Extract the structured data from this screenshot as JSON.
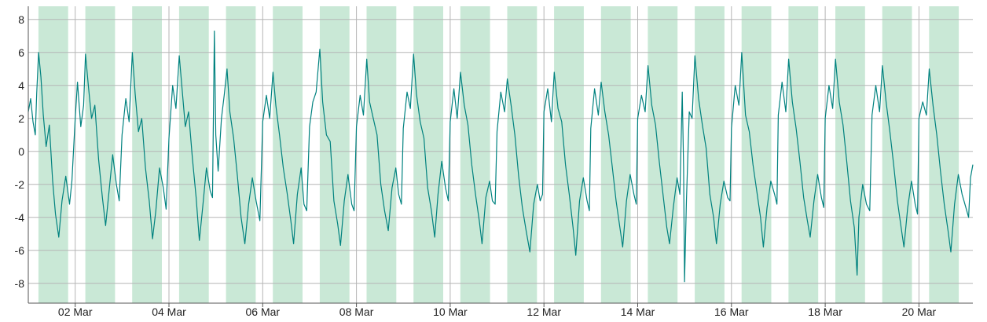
{
  "chart_data": {
    "type": "line",
    "title": "",
    "xlabel": "",
    "ylabel": "",
    "ylim": [
      -9.2,
      8.8
    ],
    "y_ticks": [
      "8",
      "6",
      "4",
      "2",
      "0",
      "-2",
      "-4",
      "-6",
      "-8"
    ],
    "y_tick_values": [
      8,
      6,
      4,
      2,
      0,
      -2,
      -4,
      -6,
      -8
    ],
    "x_unit": "days since 01 Mar",
    "xlim": [
      0.0,
      20.15
    ],
    "x_ticks": [
      "02 Mar",
      "04 Mar",
      "06 Mar",
      "08 Mar",
      "10 Mar",
      "12 Mar",
      "14 Mar",
      "16 Mar",
      "18 Mar",
      "20 Mar"
    ],
    "x_tick_values": [
      1,
      3,
      5,
      7,
      9,
      11,
      13,
      15,
      17,
      19
    ],
    "grid": true,
    "legend": "none",
    "shaded_bands": [
      [
        0.217,
        0.85
      ],
      [
        1.217,
        1.85
      ],
      [
        2.217,
        2.85
      ],
      [
        3.217,
        3.85
      ],
      [
        4.217,
        4.85
      ],
      [
        5.217,
        5.85
      ],
      [
        6.217,
        6.85
      ],
      [
        7.217,
        7.85
      ],
      [
        8.217,
        8.85
      ],
      [
        9.217,
        9.85
      ],
      [
        10.217,
        10.85
      ],
      [
        11.217,
        11.85
      ],
      [
        12.217,
        12.85
      ],
      [
        13.217,
        13.85
      ],
      [
        14.217,
        14.85
      ],
      [
        15.217,
        15.85
      ],
      [
        16.217,
        16.85
      ],
      [
        17.217,
        17.85
      ],
      [
        18.217,
        18.85
      ],
      [
        19.217,
        19.85
      ]
    ],
    "series": [
      {
        "color": "#00827f",
        "points": [
          [
            0.0,
            2.4
          ],
          [
            0.05,
            3.2
          ],
          [
            0.1,
            1.8
          ],
          [
            0.15,
            1.0
          ],
          [
            0.18,
            3.5
          ],
          [
            0.22,
            6.0
          ],
          [
            0.27,
            4.5
          ],
          [
            0.32,
            2.2
          ],
          [
            0.38,
            0.3
          ],
          [
            0.45,
            1.6
          ],
          [
            0.52,
            -1.8
          ],
          [
            0.58,
            -3.8
          ],
          [
            0.65,
            -5.2
          ],
          [
            0.72,
            -3.0
          ],
          [
            0.8,
            -1.5
          ],
          [
            0.88,
            -3.2
          ],
          [
            0.93,
            -1.8
          ],
          [
            1.0,
            2.0
          ],
          [
            1.05,
            4.2
          ],
          [
            1.12,
            1.5
          ],
          [
            1.18,
            2.8
          ],
          [
            1.22,
            5.9
          ],
          [
            1.28,
            4.0
          ],
          [
            1.35,
            2.0
          ],
          [
            1.42,
            2.8
          ],
          [
            1.5,
            -0.5
          ],
          [
            1.58,
            -2.8
          ],
          [
            1.65,
            -4.5
          ],
          [
            1.72,
            -2.5
          ],
          [
            1.8,
            -0.2
          ],
          [
            1.88,
            -2.0
          ],
          [
            1.94,
            -3.0
          ],
          [
            2.0,
            1.0
          ],
          [
            2.08,
            3.2
          ],
          [
            2.15,
            1.8
          ],
          [
            2.22,
            6.0
          ],
          [
            2.28,
            3.5
          ],
          [
            2.35,
            1.2
          ],
          [
            2.42,
            2.0
          ],
          [
            2.5,
            -1.0
          ],
          [
            2.58,
            -3.0
          ],
          [
            2.65,
            -5.3
          ],
          [
            2.72,
            -3.6
          ],
          [
            2.8,
            -1.0
          ],
          [
            2.88,
            -2.2
          ],
          [
            2.94,
            -3.5
          ],
          [
            3.0,
            0.8
          ],
          [
            3.08,
            4.0
          ],
          [
            3.15,
            2.6
          ],
          [
            3.22,
            5.8
          ],
          [
            3.28,
            3.8
          ],
          [
            3.35,
            1.5
          ],
          [
            3.42,
            2.4
          ],
          [
            3.5,
            -0.4
          ],
          [
            3.58,
            -2.8
          ],
          [
            3.65,
            -5.4
          ],
          [
            3.72,
            -3.4
          ],
          [
            3.8,
            -1.0
          ],
          [
            3.88,
            -2.4
          ],
          [
            3.93,
            -2.8
          ],
          [
            3.97,
            7.3
          ],
          [
            4.0,
            1.0
          ],
          [
            4.05,
            -1.2
          ],
          [
            4.12,
            2.0
          ],
          [
            4.18,
            3.4
          ],
          [
            4.24,
            5.0
          ],
          [
            4.3,
            2.4
          ],
          [
            4.38,
            0.8
          ],
          [
            4.46,
            -1.5
          ],
          [
            4.54,
            -4.0
          ],
          [
            4.62,
            -5.6
          ],
          [
            4.7,
            -3.2
          ],
          [
            4.78,
            -1.6
          ],
          [
            4.86,
            -3.0
          ],
          [
            4.94,
            -4.2
          ],
          [
            5.0,
            1.8
          ],
          [
            5.08,
            3.4
          ],
          [
            5.15,
            2.0
          ],
          [
            5.22,
            4.8
          ],
          [
            5.28,
            2.8
          ],
          [
            5.36,
            1.0
          ],
          [
            5.44,
            -1.0
          ],
          [
            5.52,
            -2.5
          ],
          [
            5.6,
            -4.2
          ],
          [
            5.66,
            -5.6
          ],
          [
            5.74,
            -2.6
          ],
          [
            5.82,
            -1.0
          ],
          [
            5.88,
            -3.2
          ],
          [
            5.94,
            -3.6
          ],
          [
            6.0,
            1.5
          ],
          [
            6.07,
            3.0
          ],
          [
            6.14,
            3.6
          ],
          [
            6.22,
            6.2
          ],
          [
            6.28,
            3.0
          ],
          [
            6.36,
            1.0
          ],
          [
            6.44,
            0.6
          ],
          [
            6.52,
            -3.0
          ],
          [
            6.6,
            -4.4
          ],
          [
            6.66,
            -5.7
          ],
          [
            6.74,
            -3.0
          ],
          [
            6.82,
            -1.4
          ],
          [
            6.9,
            -3.2
          ],
          [
            6.95,
            -3.6
          ],
          [
            7.0,
            1.5
          ],
          [
            7.08,
            3.4
          ],
          [
            7.15,
            2.2
          ],
          [
            7.22,
            5.6
          ],
          [
            7.28,
            3.0
          ],
          [
            7.36,
            2.0
          ],
          [
            7.44,
            1.0
          ],
          [
            7.52,
            -2.0
          ],
          [
            7.6,
            -3.6
          ],
          [
            7.68,
            -4.8
          ],
          [
            7.76,
            -2.2
          ],
          [
            7.84,
            -1.0
          ],
          [
            7.9,
            -2.6
          ],
          [
            7.96,
            -3.2
          ],
          [
            8.0,
            1.4
          ],
          [
            8.08,
            3.6
          ],
          [
            8.15,
            2.6
          ],
          [
            8.22,
            5.9
          ],
          [
            8.28,
            3.5
          ],
          [
            8.36,
            1.8
          ],
          [
            8.44,
            0.8
          ],
          [
            8.52,
            -2.2
          ],
          [
            8.6,
            -3.6
          ],
          [
            8.67,
            -5.2
          ],
          [
            8.74,
            -2.6
          ],
          [
            8.82,
            -0.6
          ],
          [
            8.9,
            -2.2
          ],
          [
            8.96,
            -3.0
          ],
          [
            9.0,
            1.8
          ],
          [
            9.08,
            3.8
          ],
          [
            9.15,
            2.0
          ],
          [
            9.22,
            4.8
          ],
          [
            9.3,
            2.8
          ],
          [
            9.38,
            1.6
          ],
          [
            9.46,
            -0.8
          ],
          [
            9.54,
            -2.6
          ],
          [
            9.62,
            -4.2
          ],
          [
            9.68,
            -5.6
          ],
          [
            9.76,
            -2.8
          ],
          [
            9.84,
            -1.8
          ],
          [
            9.9,
            -3.0
          ],
          [
            9.96,
            -3.2
          ],
          [
            10.0,
            1.2
          ],
          [
            10.08,
            3.6
          ],
          [
            10.16,
            2.4
          ],
          [
            10.22,
            4.4
          ],
          [
            10.3,
            2.8
          ],
          [
            10.38,
            1.0
          ],
          [
            10.46,
            -1.5
          ],
          [
            10.54,
            -3.4
          ],
          [
            10.62,
            -4.8
          ],
          [
            10.7,
            -6.1
          ],
          [
            10.78,
            -3.2
          ],
          [
            10.86,
            -2.0
          ],
          [
            10.92,
            -3.0
          ],
          [
            10.97,
            -2.6
          ],
          [
            11.0,
            2.4
          ],
          [
            11.08,
            3.8
          ],
          [
            11.16,
            1.8
          ],
          [
            11.22,
            4.8
          ],
          [
            11.3,
            2.6
          ],
          [
            11.38,
            1.8
          ],
          [
            11.46,
            -0.8
          ],
          [
            11.54,
            -2.6
          ],
          [
            11.62,
            -4.6
          ],
          [
            11.68,
            -6.3
          ],
          [
            11.76,
            -3.0
          ],
          [
            11.84,
            -1.6
          ],
          [
            11.92,
            -3.0
          ],
          [
            11.97,
            -3.6
          ],
          [
            12.0,
            1.4
          ],
          [
            12.08,
            3.8
          ],
          [
            12.16,
            2.2
          ],
          [
            12.22,
            4.2
          ],
          [
            12.3,
            2.4
          ],
          [
            12.38,
            1.0
          ],
          [
            12.46,
            -1.0
          ],
          [
            12.54,
            -3.0
          ],
          [
            12.62,
            -4.6
          ],
          [
            12.68,
            -5.8
          ],
          [
            12.76,
            -3.0
          ],
          [
            12.84,
            -1.4
          ],
          [
            12.92,
            -2.6
          ],
          [
            12.97,
            -3.2
          ],
          [
            13.0,
            2.0
          ],
          [
            13.08,
            3.4
          ],
          [
            13.16,
            2.4
          ],
          [
            13.22,
            5.2
          ],
          [
            13.3,
            2.8
          ],
          [
            13.38,
            1.6
          ],
          [
            13.46,
            -0.6
          ],
          [
            13.54,
            -2.6
          ],
          [
            13.62,
            -4.6
          ],
          [
            13.68,
            -5.6
          ],
          [
            13.76,
            -3.4
          ],
          [
            13.84,
            -1.6
          ],
          [
            13.9,
            -2.6
          ],
          [
            13.95,
            3.6
          ],
          [
            13.98,
            -1.0
          ],
          [
            14.0,
            -7.9
          ],
          [
            14.04,
            -3.0
          ],
          [
            14.1,
            2.4
          ],
          [
            14.16,
            2.0
          ],
          [
            14.22,
            5.8
          ],
          [
            14.3,
            3.2
          ],
          [
            14.38,
            1.6
          ],
          [
            14.46,
            0.2
          ],
          [
            14.54,
            -2.6
          ],
          [
            14.62,
            -4.0
          ],
          [
            14.68,
            -5.6
          ],
          [
            14.76,
            -3.2
          ],
          [
            14.84,
            -1.8
          ],
          [
            14.92,
            -2.8
          ],
          [
            14.97,
            -3.0
          ],
          [
            15.0,
            1.4
          ],
          [
            15.08,
            4.0
          ],
          [
            15.16,
            2.8
          ],
          [
            15.22,
            6.0
          ],
          [
            15.3,
            2.2
          ],
          [
            15.38,
            1.2
          ],
          [
            15.46,
            -0.8
          ],
          [
            15.54,
            -2.4
          ],
          [
            15.62,
            -4.0
          ],
          [
            15.68,
            -5.8
          ],
          [
            15.76,
            -3.4
          ],
          [
            15.84,
            -1.8
          ],
          [
            15.92,
            -2.6
          ],
          [
            15.97,
            -3.2
          ],
          [
            16.0,
            2.2
          ],
          [
            16.08,
            4.2
          ],
          [
            16.16,
            2.4
          ],
          [
            16.22,
            5.6
          ],
          [
            16.3,
            3.0
          ],
          [
            16.38,
            1.4
          ],
          [
            16.46,
            -0.6
          ],
          [
            16.54,
            -2.8
          ],
          [
            16.62,
            -4.2
          ],
          [
            16.68,
            -5.2
          ],
          [
            16.76,
            -3.0
          ],
          [
            16.84,
            -1.4
          ],
          [
            16.92,
            -2.8
          ],
          [
            16.97,
            -3.4
          ],
          [
            17.0,
            2.0
          ],
          [
            17.08,
            4.0
          ],
          [
            17.16,
            2.6
          ],
          [
            17.22,
            5.6
          ],
          [
            17.3,
            3.0
          ],
          [
            17.38,
            1.6
          ],
          [
            17.46,
            -0.6
          ],
          [
            17.54,
            -3.0
          ],
          [
            17.62,
            -4.6
          ],
          [
            17.68,
            -7.5
          ],
          [
            17.72,
            -4.0
          ],
          [
            17.8,
            -2.0
          ],
          [
            17.88,
            -3.2
          ],
          [
            17.95,
            -3.6
          ],
          [
            18.0,
            2.2
          ],
          [
            18.08,
            4.0
          ],
          [
            18.16,
            2.4
          ],
          [
            18.22,
            5.2
          ],
          [
            18.3,
            3.0
          ],
          [
            18.38,
            1.2
          ],
          [
            18.46,
            -0.8
          ],
          [
            18.54,
            -3.0
          ],
          [
            18.62,
            -4.6
          ],
          [
            18.68,
            -5.8
          ],
          [
            18.76,
            -3.4
          ],
          [
            18.84,
            -1.8
          ],
          [
            18.92,
            -3.2
          ],
          [
            18.97,
            -3.8
          ],
          [
            19.0,
            2.0
          ],
          [
            19.08,
            3.0
          ],
          [
            19.16,
            2.2
          ],
          [
            19.22,
            5.0
          ],
          [
            19.3,
            2.8
          ],
          [
            19.38,
            1.0
          ],
          [
            19.46,
            -1.2
          ],
          [
            19.54,
            -3.2
          ],
          [
            19.62,
            -4.8
          ],
          [
            19.68,
            -6.1
          ],
          [
            19.76,
            -3.2
          ],
          [
            19.84,
            -1.4
          ],
          [
            19.92,
            -2.6
          ],
          [
            20.0,
            -3.4
          ],
          [
            20.06,
            -4.0
          ],
          [
            20.1,
            -1.6
          ],
          [
            20.15,
            -0.8
          ]
        ]
      }
    ]
  }
}
